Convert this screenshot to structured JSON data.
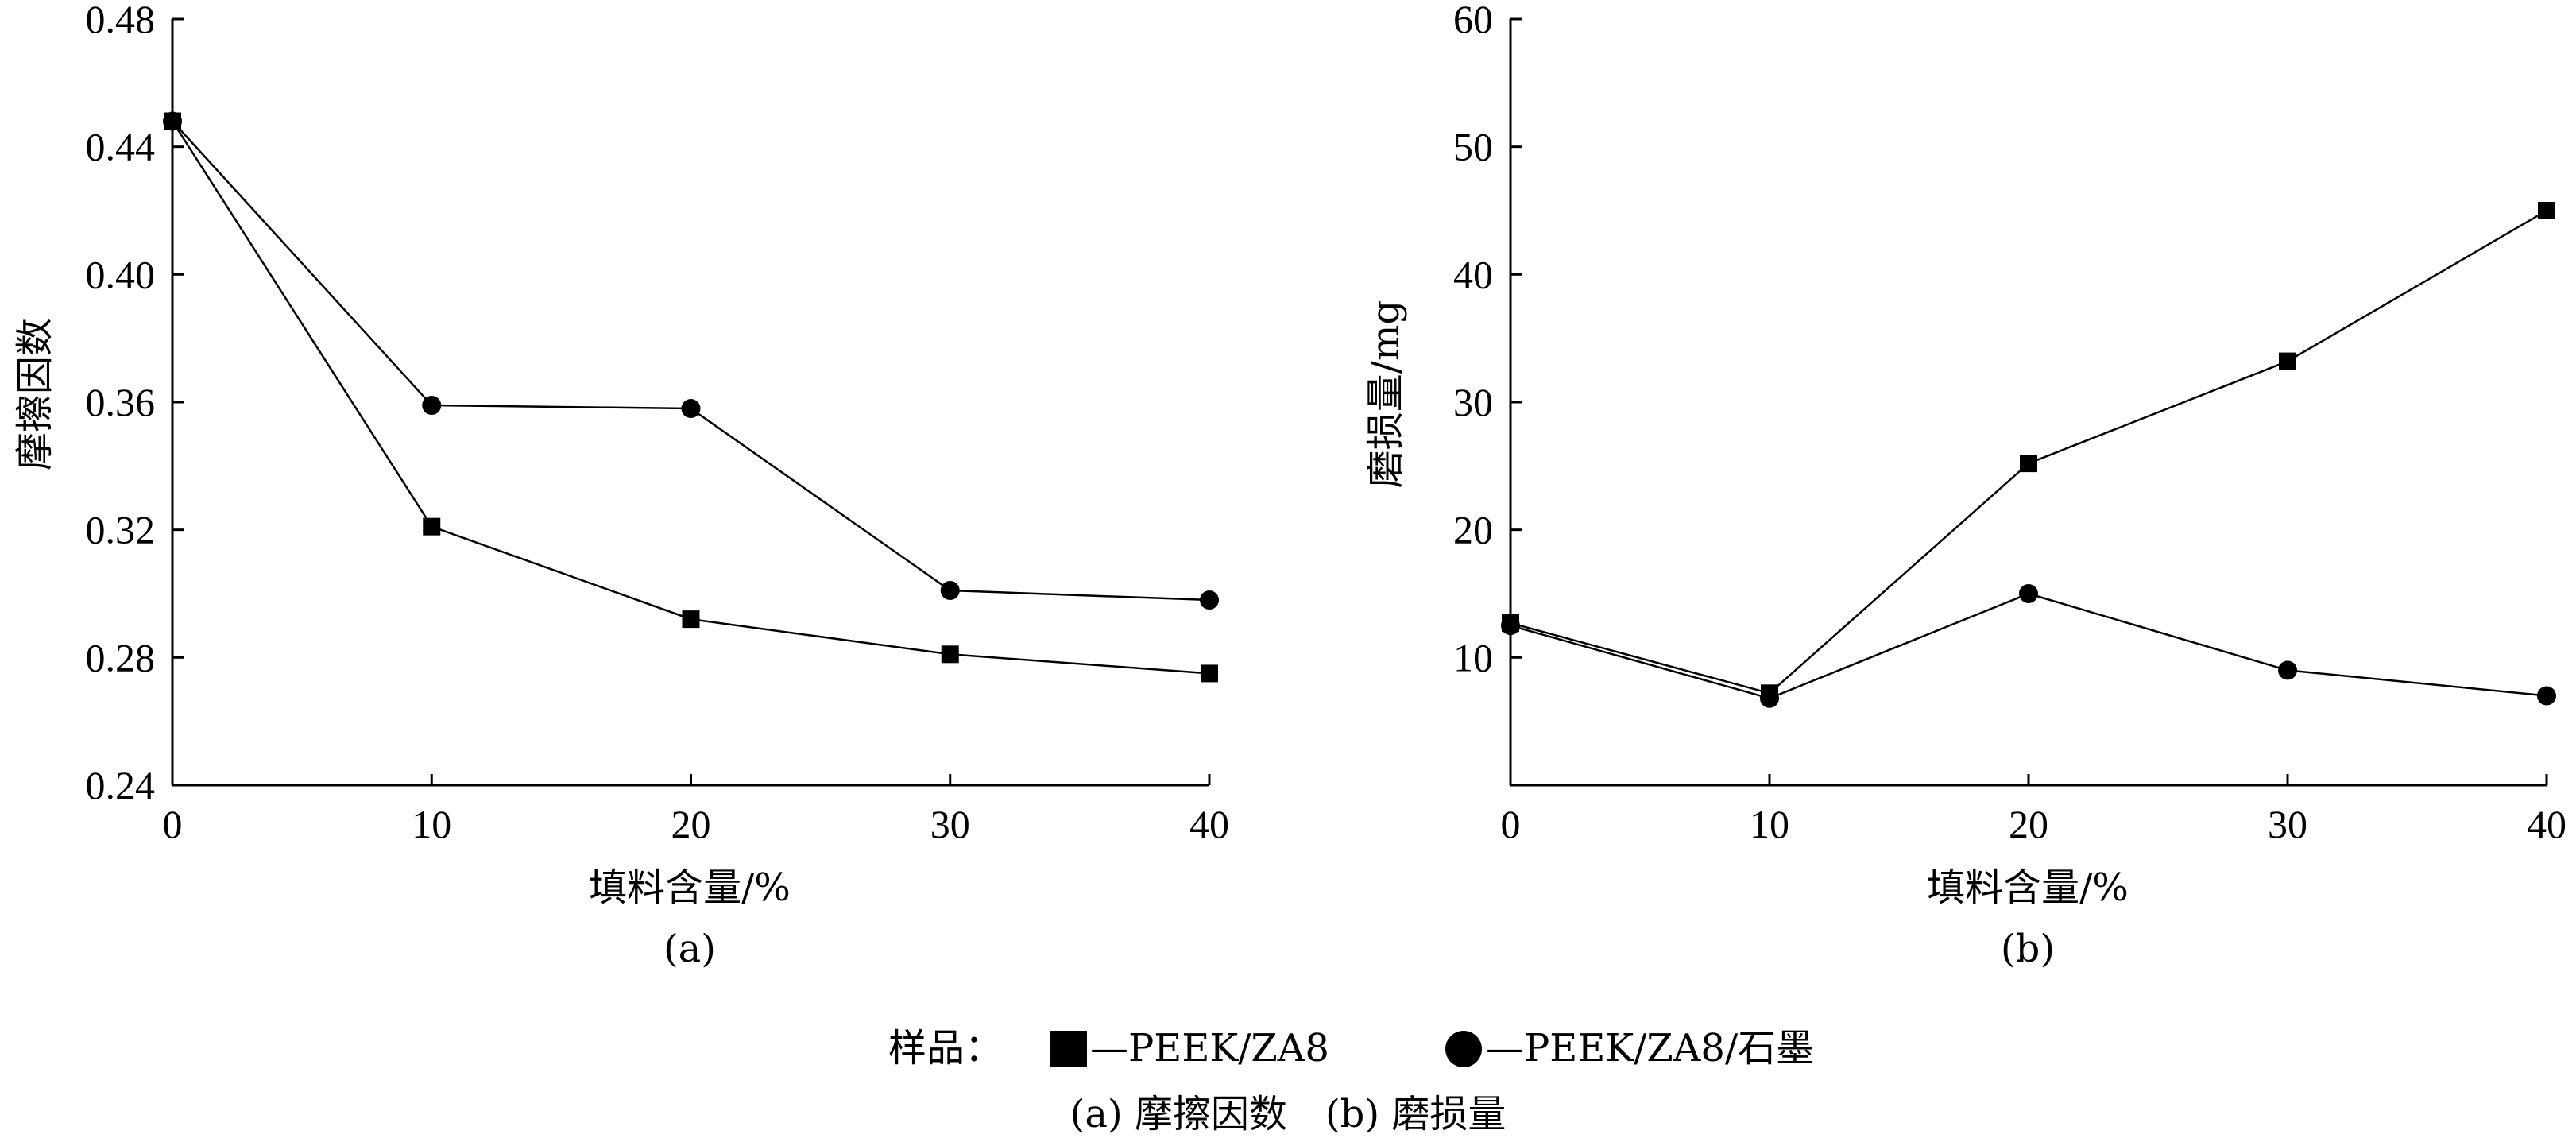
{
  "chart_data": [
    {
      "type": "line",
      "panel_label": "(a)",
      "x": [
        0,
        10,
        20,
        30,
        40
      ],
      "xlabel": "填料含量/%",
      "ylabel": "摩擦因数",
      "xlim": [
        0,
        40
      ],
      "ylim": [
        0.24,
        0.48
      ],
      "x_ticks": [
        "0",
        "10",
        "20",
        "30",
        "40"
      ],
      "y_ticks": [
        "0.24",
        "0.28",
        "0.32",
        "0.36",
        "0.40",
        "0.44",
        "0.48"
      ],
      "grid": false,
      "series": [
        {
          "name": "PEEK/ZA8",
          "marker": "square",
          "values": [
            0.448,
            0.321,
            0.292,
            0.281,
            0.275
          ]
        },
        {
          "name": "PEEK/ZA8/石墨",
          "marker": "circle",
          "values": [
            0.448,
            0.359,
            0.358,
            0.301,
            0.298
          ]
        }
      ]
    },
    {
      "type": "line",
      "panel_label": "(b)",
      "x": [
        0,
        10,
        20,
        30,
        40
      ],
      "xlabel": "填料含量/%",
      "ylabel": "磨损量/mg",
      "xlim": [
        0,
        40
      ],
      "ylim": [
        0,
        60
      ],
      "x_ticks": [
        "0",
        "10",
        "20",
        "30",
        "40"
      ],
      "y_ticks": [
        "10",
        "20",
        "30",
        "40",
        "50",
        "60"
      ],
      "grid": false,
      "series": [
        {
          "name": "PEEK/ZA8",
          "marker": "square",
          "values": [
            12.7,
            7.2,
            25.2,
            33.2,
            45.0
          ]
        },
        {
          "name": "PEEK/ZA8/石墨",
          "marker": "circle",
          "values": [
            12.5,
            6.8,
            15.0,
            9.0,
            7.0
          ]
        }
      ]
    }
  ],
  "legend": {
    "prefix": "样品：",
    "items": [
      {
        "label": "—PEEK/ZA8",
        "marker": "square"
      },
      {
        "label": "—PEEK/ZA8/石墨",
        "marker": "circle"
      }
    ]
  },
  "caption": "(a) 摩擦因数　(b) 磨损量",
  "colors": {
    "ink": "#000000",
    "background": "#ffffff"
  }
}
